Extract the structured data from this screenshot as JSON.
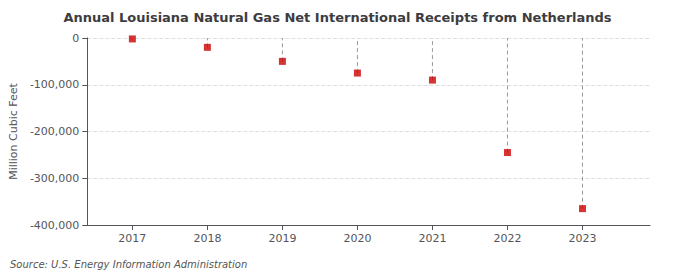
{
  "chart_data": {
    "type": "stem",
    "title": "Annual Louisiana Natural Gas Net International Receipts from Netherlands",
    "ylabel": "Million Cubic Feet",
    "source": "Source: U.S. Energy Information Administration",
    "x": [
      2017,
      2018,
      2019,
      2020,
      2021,
      2022,
      2023
    ],
    "values": [
      -2000,
      -20000,
      -50000,
      -75000,
      -90000,
      -245000,
      -365000
    ],
    "color": "#cc0000",
    "marker": "square",
    "line_style": "dashed",
    "xlim": [
      2016.4,
      2023.9
    ],
    "xticks": [
      2017,
      2018,
      2019,
      2020,
      2021,
      2022,
      2023
    ],
    "ylim": [
      -400000,
      0
    ],
    "yticks": [
      0,
      {
        "value": -100000,
        "label": "-100,000"
      },
      {
        "value": -200000,
        "label": "-200,000"
      },
      {
        "value": -300000,
        "label": "-300,000"
      },
      {
        "value": -400000,
        "label": "-400,000"
      }
    ],
    "grid": true
  }
}
